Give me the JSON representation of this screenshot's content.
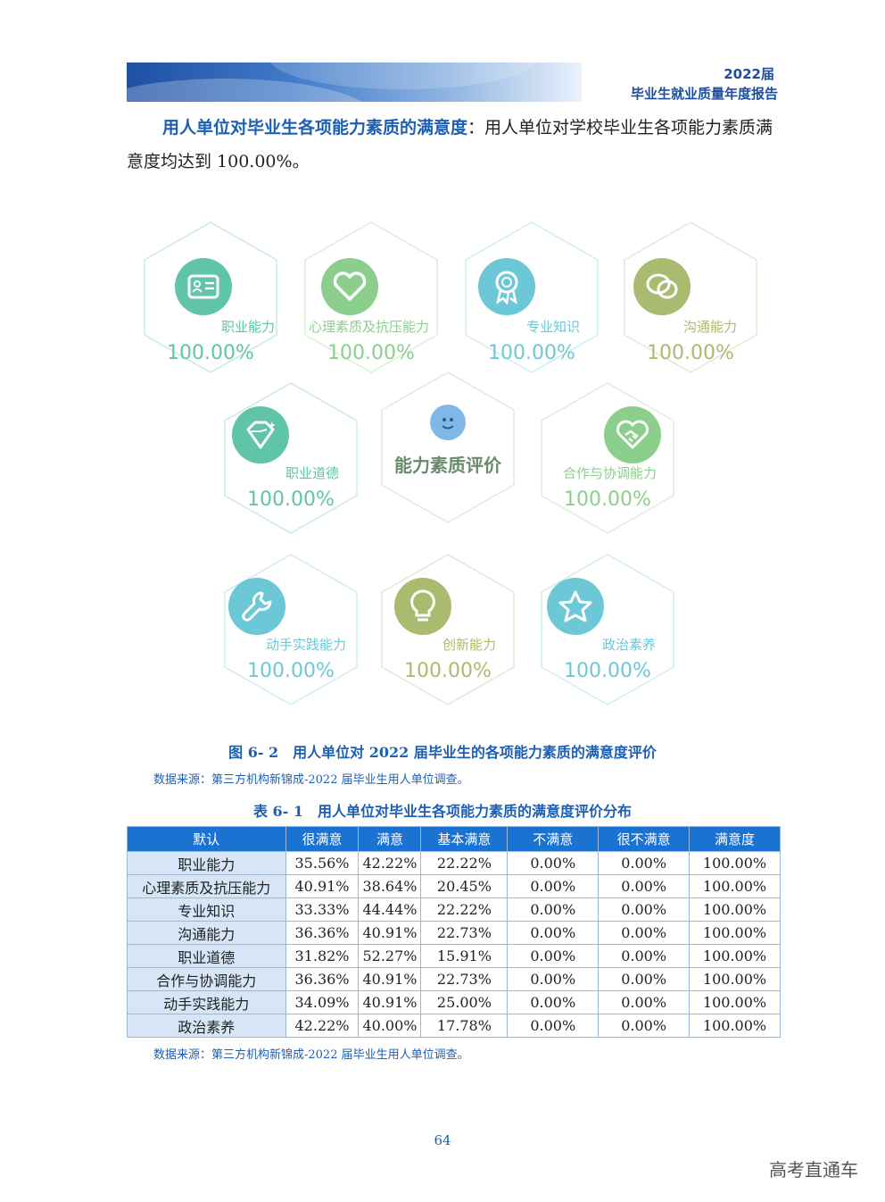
{
  "header": {
    "year": "2022届",
    "title": "毕业生就业质量年度报告"
  },
  "intro": {
    "lead": "用人单位对毕业生各项能力素质的满意度",
    "rest": "：用人单位对学校毕业生各项能力素质满意度均达到 100.00%。"
  },
  "infographic": {
    "center_title": "能力素质评价",
    "items": [
      {
        "label": "职业能力",
        "value": "100.00%",
        "color": "#5fc4a8",
        "icon": "id-card-icon"
      },
      {
        "label": "心理素质及抗压能力",
        "value": "100.00%",
        "color": "#8ccf8c",
        "icon": "heart-icon"
      },
      {
        "label": "专业知识",
        "value": "100.00%",
        "color": "#6cc8d6",
        "icon": "award-icon"
      },
      {
        "label": "沟通能力",
        "value": "100.00%",
        "color": "#aabb6f",
        "icon": "chat-bubble-icon"
      },
      {
        "label": "职业道德",
        "value": "100.00%",
        "color": "#5fc4a8",
        "icon": "diamond-icon"
      },
      {
        "label": "合作与协调能力",
        "value": "100.00%",
        "color": "#8ccf8c",
        "icon": "handshake-icon"
      },
      {
        "label": "动手实践能力",
        "value": "100.00%",
        "color": "#6cc8d6",
        "icon": "wrench-icon"
      },
      {
        "label": "创新能力",
        "value": "100.00%",
        "color": "#aabb6f",
        "icon": "lightbulb-icon"
      },
      {
        "label": "政治素养",
        "value": "100.00%",
        "color": "#6cc8d6",
        "icon": "star-icon"
      }
    ]
  },
  "figure_caption": "图 6- 2　用人单位对 2022 届毕业生的各项能力素质的满意度评价",
  "source_note": "数据来源：第三方机构新锦成-2022 届毕业生用人单位调查。",
  "table": {
    "caption": "表 6- 1　用人单位对毕业生各项能力素质的满意度评价分布",
    "headers": [
      "默认",
      "很满意",
      "满意",
      "基本满意",
      "不满意",
      "很不满意",
      "满意度"
    ],
    "rows": [
      [
        "职业能力",
        "35.56%",
        "42.22%",
        "22.22%",
        "0.00%",
        "0.00%",
        "100.00%"
      ],
      [
        "心理素质及抗压能力",
        "40.91%",
        "38.64%",
        "20.45%",
        "0.00%",
        "0.00%",
        "100.00%"
      ],
      [
        "专业知识",
        "33.33%",
        "44.44%",
        "22.22%",
        "0.00%",
        "0.00%",
        "100.00%"
      ],
      [
        "沟通能力",
        "36.36%",
        "40.91%",
        "22.73%",
        "0.00%",
        "0.00%",
        "100.00%"
      ],
      [
        "职业道德",
        "31.82%",
        "52.27%",
        "15.91%",
        "0.00%",
        "0.00%",
        "100.00%"
      ],
      [
        "合作与协调能力",
        "36.36%",
        "40.91%",
        "22.73%",
        "0.00%",
        "0.00%",
        "100.00%"
      ],
      [
        "动手实践能力",
        "34.09%",
        "40.91%",
        "25.00%",
        "0.00%",
        "0.00%",
        "100.00%"
      ],
      [
        "政治素养",
        "42.22%",
        "40.00%",
        "17.78%",
        "0.00%",
        "0.00%",
        "100.00%"
      ]
    ]
  },
  "page_number": "64",
  "watermark": "高考直通车"
}
